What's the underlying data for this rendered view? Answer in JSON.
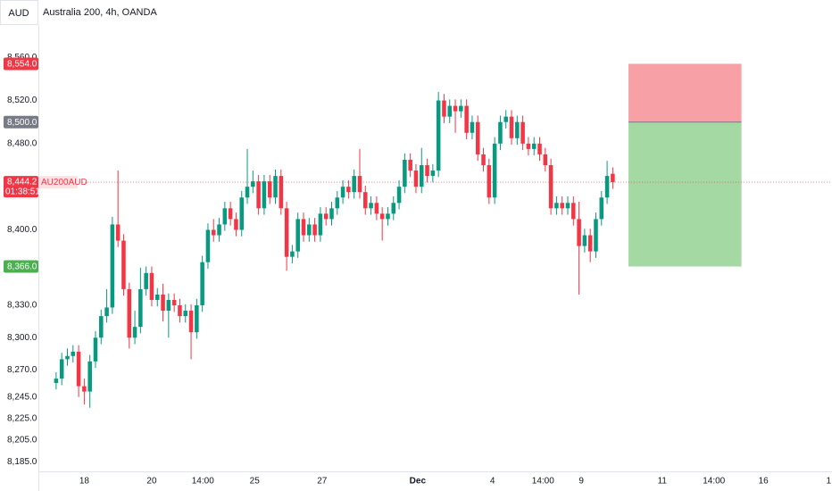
{
  "header": {
    "currency": "AUD",
    "title": "Australia 200, 4h, OANDA"
  },
  "chart_data": {
    "type": "candlestick",
    "x": [
      0,
      1,
      2,
      3,
      4,
      5,
      6,
      7,
      8,
      9,
      10,
      11,
      12,
      13,
      14,
      15,
      16,
      17,
      18,
      19,
      20,
      21,
      22,
      23,
      24,
      25,
      26,
      27,
      28,
      29,
      30,
      31,
      32,
      33,
      34,
      35,
      36,
      37,
      38,
      39,
      40,
      41,
      42,
      43,
      44,
      45,
      46,
      47,
      48,
      49,
      50,
      51,
      52,
      53,
      54,
      55,
      56,
      57,
      58,
      59,
      60,
      61,
      62,
      63,
      64,
      65,
      66,
      67,
      68,
      69,
      70,
      71,
      72,
      73,
      74,
      75,
      76,
      77,
      78,
      79,
      80,
      81,
      82,
      83,
      84,
      85,
      86,
      87,
      88,
      89,
      90,
      91,
      92,
      93,
      94,
      95,
      96,
      97,
      98,
      99
    ],
    "open": [
      8258,
      8262,
      8280,
      8283,
      8287,
      8255,
      8250,
      8278,
      8300,
      8320,
      8328,
      8405,
      8390,
      8345,
      8300,
      8310,
      8345,
      8360,
      8335,
      8340,
      8325,
      8335,
      8330,
      8320,
      8325,
      8305,
      8330,
      8370,
      8400,
      8395,
      8405,
      8420,
      8410,
      8400,
      8430,
      8440,
      8445,
      8420,
      8445,
      8430,
      8450,
      8420,
      8375,
      8380,
      8410,
      8395,
      8405,
      8395,
      8415,
      8410,
      8420,
      8430,
      8440,
      8435,
      8450,
      8435,
      8420,
      8425,
      8415,
      8410,
      8415,
      8425,
      8440,
      8465,
      8455,
      8440,
      8460,
      8450,
      8455,
      8520,
      8505,
      8515,
      8510,
      8515,
      8490,
      8500,
      8470,
      8460,
      8430,
      8480,
      8500,
      8505,
      8485,
      8500,
      8480,
      8475,
      8480,
      8470,
      8460,
      8420,
      8425,
      8420,
      8425,
      8410,
      8385,
      8395,
      8380,
      8410,
      8430,
      8452
    ],
    "high": [
      8268,
      8286,
      8290,
      8293,
      8293,
      8262,
      8284,
      8306,
      8326,
      8345,
      8412,
      8455,
      8396,
      8351,
      8325,
      8365,
      8366,
      8366,
      8346,
      8350,
      8341,
      8341,
      8336,
      8331,
      8331,
      8336,
      8376,
      8406,
      8410,
      8411,
      8426,
      8426,
      8416,
      8436,
      8475,
      8455,
      8451,
      8451,
      8451,
      8456,
      8456,
      8426,
      8386,
      8416,
      8416,
      8411,
      8411,
      8421,
      8421,
      8426,
      8436,
      8446,
      8446,
      8456,
      8475,
      8441,
      8431,
      8431,
      8421,
      8421,
      8431,
      8446,
      8471,
      8471,
      8461,
      8476,
      8466,
      8461,
      8528,
      8526,
      8521,
      8521,
      8521,
      8521,
      8506,
      8506,
      8476,
      8466,
      8486,
      8506,
      8511,
      8511,
      8506,
      8506,
      8486,
      8486,
      8486,
      8476,
      8466,
      8431,
      8431,
      8431,
      8431,
      8426,
      8401,
      8401,
      8416,
      8436,
      8464,
      8458
    ],
    "low": [
      8252,
      8256,
      8274,
      8277,
      8245,
      8238,
      8235,
      8272,
      8294,
      8314,
      8322,
      8384,
      8339,
      8290,
      8294,
      8304,
      8339,
      8329,
      8329,
      8315,
      8300,
      8324,
      8314,
      8314,
      8280,
      8299,
      8324,
      8364,
      8389,
      8389,
      8399,
      8404,
      8394,
      8394,
      8424,
      8434,
      8414,
      8414,
      8424,
      8424,
      8414,
      8362,
      8369,
      8374,
      8389,
      8389,
      8389,
      8389,
      8404,
      8404,
      8414,
      8424,
      8429,
      8429,
      8429,
      8414,
      8414,
      8409,
      8390,
      8404,
      8409,
      8419,
      8434,
      8449,
      8434,
      8434,
      8444,
      8444,
      8449,
      8499,
      8499,
      8490,
      8504,
      8484,
      8484,
      8464,
      8454,
      8424,
      8424,
      8474,
      8494,
      8479,
      8479,
      8474,
      8469,
      8469,
      8464,
      8454,
      8414,
      8414,
      8414,
      8414,
      8404,
      8340,
      8379,
      8370,
      8374,
      8404,
      8424,
      8438
    ],
    "close": [
      8262,
      8280,
      8283,
      8287,
      8255,
      8250,
      8278,
      8300,
      8320,
      8328,
      8405,
      8390,
      8345,
      8300,
      8310,
      8345,
      8360,
      8335,
      8340,
      8325,
      8335,
      8330,
      8320,
      8325,
      8305,
      8330,
      8370,
      8400,
      8395,
      8405,
      8420,
      8410,
      8400,
      8430,
      8440,
      8445,
      8420,
      8445,
      8430,
      8450,
      8420,
      8375,
      8380,
      8410,
      8395,
      8405,
      8395,
      8415,
      8410,
      8420,
      8430,
      8440,
      8435,
      8450,
      8435,
      8420,
      8425,
      8415,
      8410,
      8415,
      8425,
      8440,
      8465,
      8455,
      8440,
      8460,
      8450,
      8455,
      8520,
      8505,
      8515,
      8510,
      8515,
      8490,
      8500,
      8470,
      8460,
      8430,
      8480,
      8500,
      8505,
      8485,
      8500,
      8480,
      8475,
      8480,
      8470,
      8460,
      8420,
      8425,
      8420,
      8425,
      8410,
      8385,
      8395,
      8380,
      8410,
      8430,
      8450,
      8444.2
    ],
    "up_color": "#089981",
    "down_color": "#f23645",
    "xlim": [
      -3,
      138
    ],
    "ylim": [
      8176,
      8590
    ],
    "xticks": [
      {
        "value": 5,
        "label": "18"
      },
      {
        "value": 17,
        "label": "20"
      },
      {
        "value": 26.1,
        "label": "14:00"
      },
      {
        "value": 35.3,
        "label": "25"
      },
      {
        "value": 47.3,
        "label": "27"
      },
      {
        "value": 64.3,
        "label": "Dec"
      },
      {
        "value": 77.6,
        "label": "4"
      },
      {
        "value": 86.6,
        "label": "14:00"
      },
      {
        "value": 93.4,
        "label": "9"
      },
      {
        "value": 107.8,
        "label": "11"
      },
      {
        "value": 117,
        "label": "14:00"
      },
      {
        "value": 125.8,
        "label": "16"
      },
      {
        "value": 137.4,
        "label": "1"
      }
    ],
    "yticks": [
      {
        "value": 8560,
        "label": "8,560.0"
      },
      {
        "value": 8520,
        "label": "8,520.0"
      },
      {
        "value": 8480,
        "label": "8,480.0"
      },
      {
        "value": 8400,
        "label": "8,400.0"
      },
      {
        "value": 8330,
        "label": "8,330.0"
      },
      {
        "value": 8300,
        "label": "8,300.0"
      },
      {
        "value": 8270,
        "label": "8,270.0"
      },
      {
        "value": 8245,
        "label": "8,245.0"
      },
      {
        "value": 8225,
        "label": "8,225.0"
      },
      {
        "value": 8205,
        "label": "8,205.0"
      },
      {
        "value": 8185,
        "label": "8,185.0"
      }
    ],
    "grid": false,
    "position": {
      "x": [
        101.8,
        121.9
      ],
      "stop": 8554,
      "entry": 8500,
      "target": 8366,
      "stop_color": "#f7a1a6",
      "target_color": "#a5d9a4"
    },
    "price_markers": [
      {
        "value": 8554,
        "label": "8,554.0",
        "color": "#f23645"
      },
      {
        "value": 8500,
        "label": "8,500.0",
        "color": "#787b86"
      },
      {
        "value": 8366,
        "label": "8,366.0",
        "color": "#4caf50"
      }
    ],
    "last_price": {
      "value": 8444.2,
      "label": "8,444.2",
      "symbol": "AU200AUD",
      "countdown": "01:38:51",
      "color": "#f23645"
    }
  }
}
